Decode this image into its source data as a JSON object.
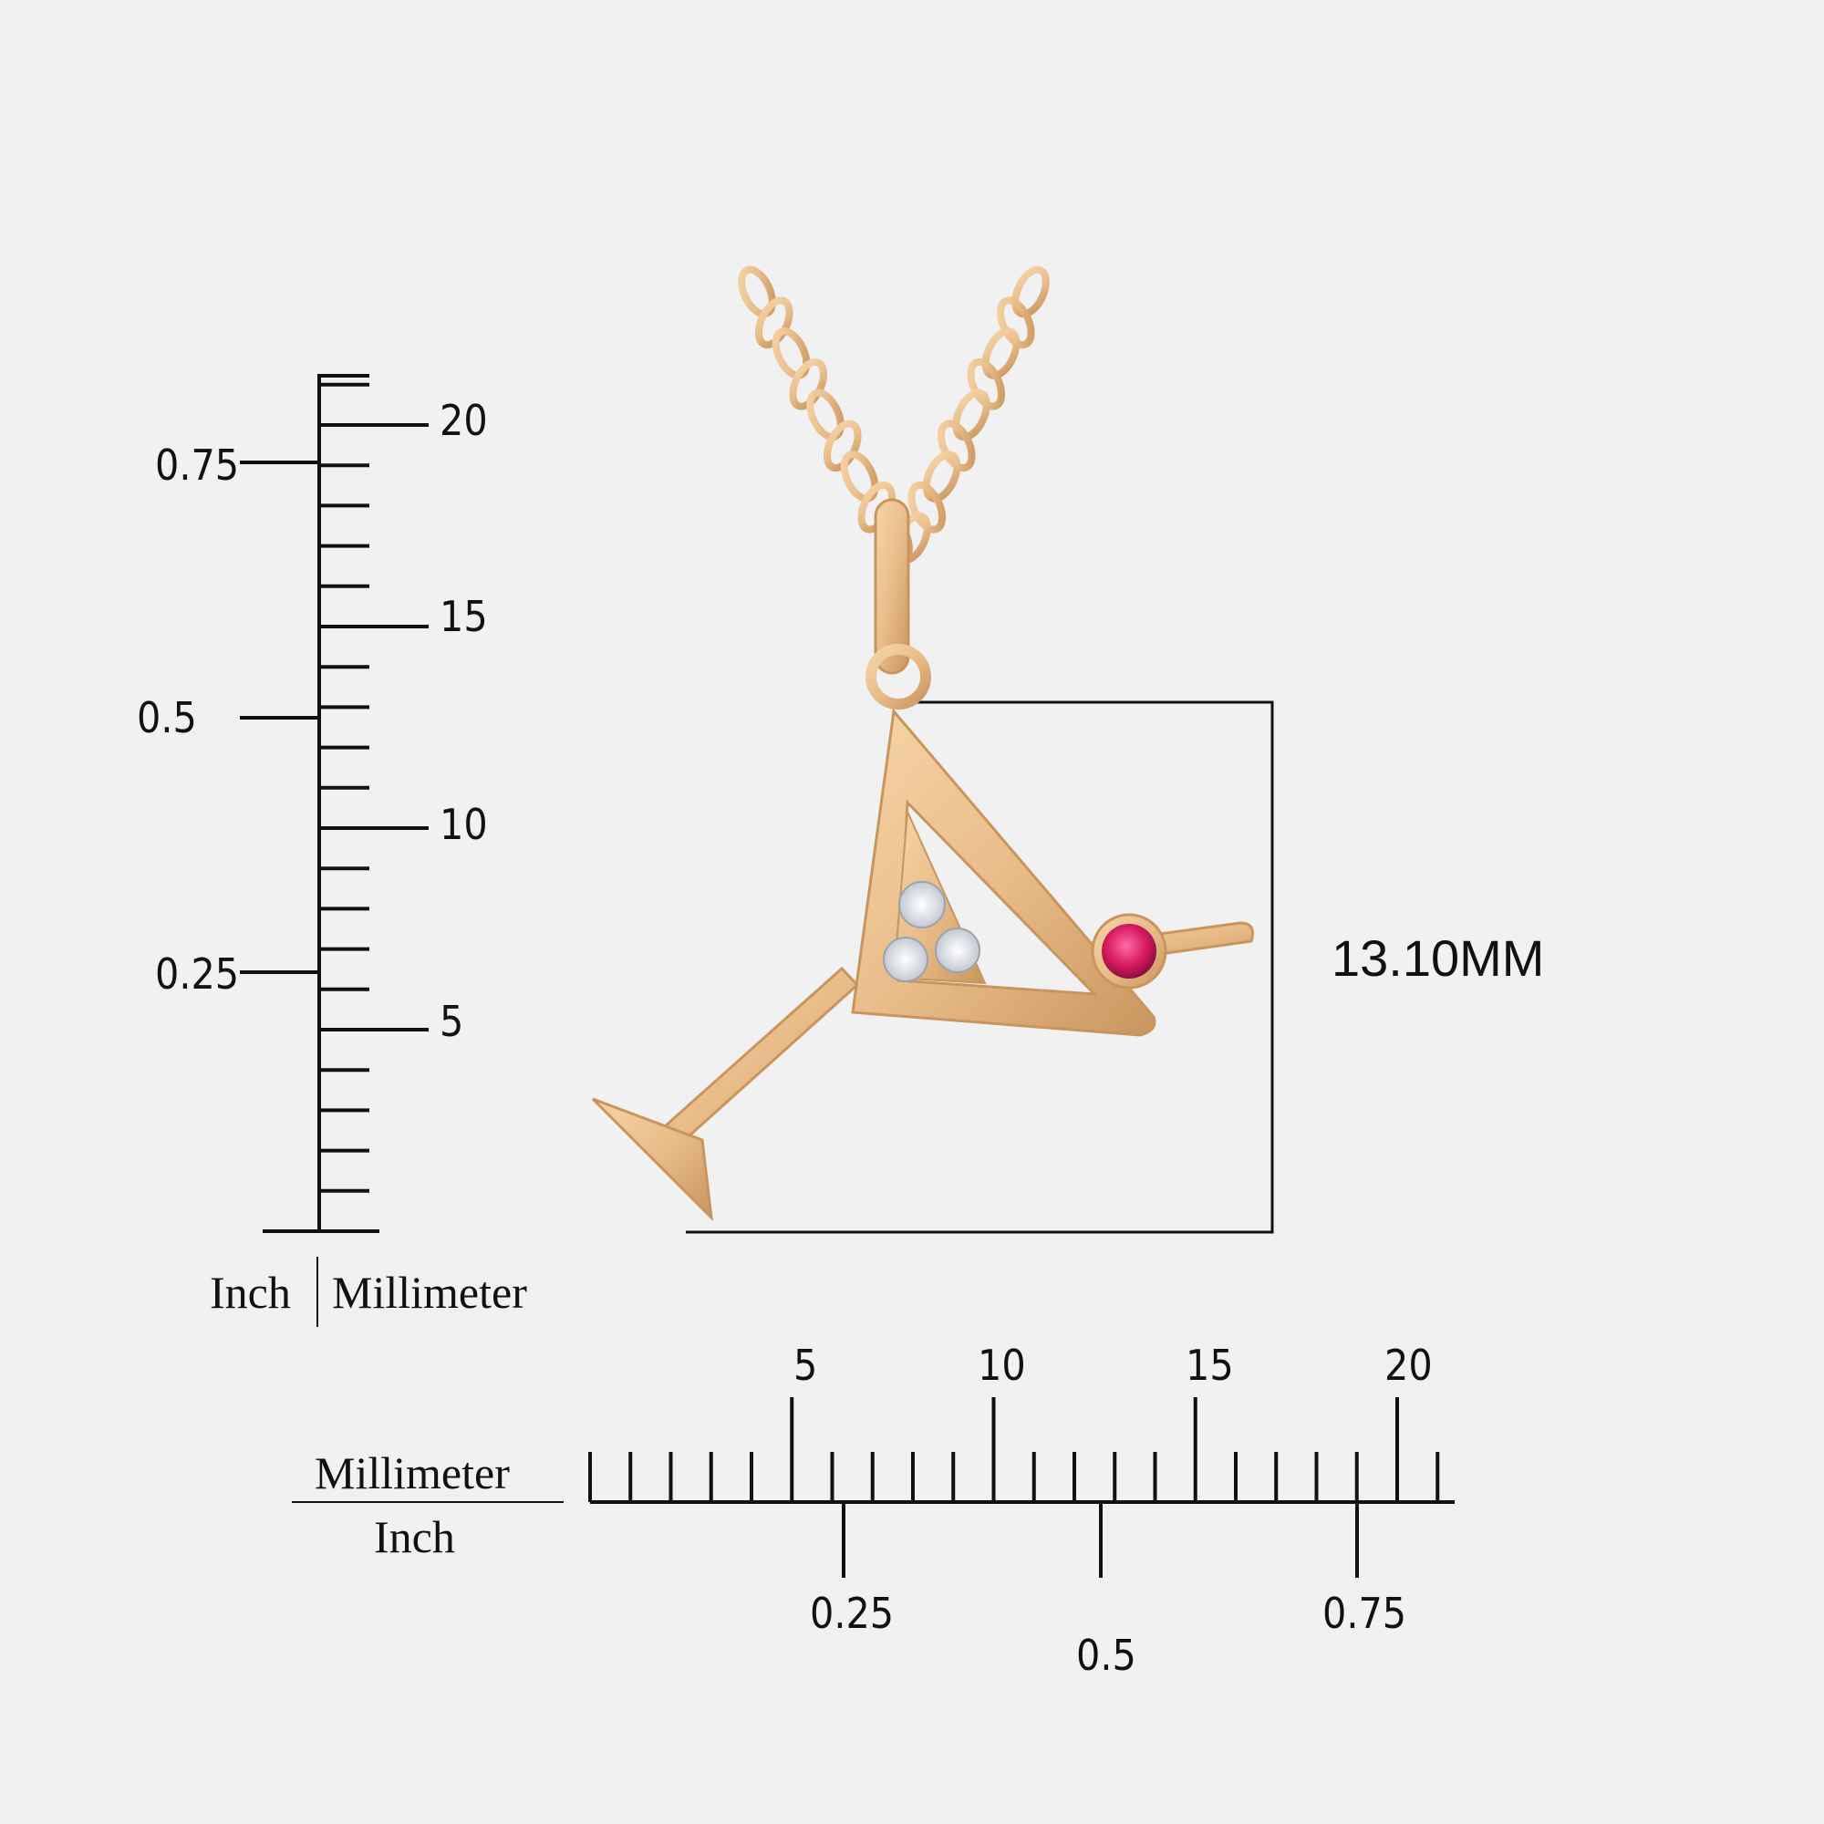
{
  "vertical_ruler": {
    "mm_labels": [
      "20",
      "15",
      "10",
      "5"
    ],
    "inch_labels": [
      "0.75",
      "0.5",
      "0.25"
    ],
    "unit_left": "Inch",
    "unit_right": "Millimeter"
  },
  "horizontal_ruler": {
    "mm_labels": [
      "5",
      "10",
      "15",
      "20"
    ],
    "inch_labels": [
      "0.25",
      "0.5",
      "0.75"
    ],
    "unit_top": "Millimeter",
    "unit_bottom": "Inch"
  },
  "measurement": {
    "label": "13.10MM"
  },
  "colors": {
    "background": "#f1f1f1",
    "gold": "#e9bd8a",
    "gold_dark": "#c9955e",
    "ruby": "#d81b60",
    "diamond": "#dfe3ea"
  }
}
